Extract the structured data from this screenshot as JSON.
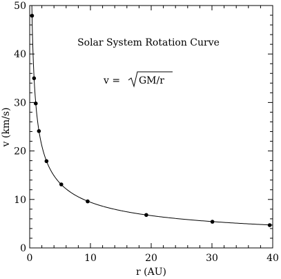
{
  "chart_data": {
    "type": "scatter",
    "title": "Solar System Rotation Curve",
    "formula": {
      "lhs": "v  =",
      "radicand": "GM/r"
    },
    "xlabel": "r (AU)",
    "ylabel": "v (km/s)",
    "xlim": [
      0,
      40
    ],
    "ylim": [
      0,
      50
    ],
    "xticks": [
      0,
      10,
      20,
      30,
      40
    ],
    "yticks": [
      0,
      10,
      20,
      30,
      40,
      50
    ],
    "x_tick_labels": [
      "0",
      "10",
      "20",
      "30",
      "40"
    ],
    "y_tick_labels": [
      "0",
      "10",
      "20",
      "30",
      "40",
      "50"
    ],
    "grid": false,
    "series": [
      {
        "kind": "points",
        "x": [
          0.39,
          0.72,
          1.0,
          1.52,
          2.77,
          5.2,
          9.54,
          19.19,
          30.07,
          39.5
        ],
        "y": [
          47.9,
          35.0,
          29.8,
          24.1,
          17.9,
          13.1,
          9.6,
          6.8,
          5.4,
          4.7
        ]
      },
      {
        "kind": "curve",
        "equation": "v = sqrt(GM/r)",
        "coefficient": 29.8
      }
    ]
  }
}
